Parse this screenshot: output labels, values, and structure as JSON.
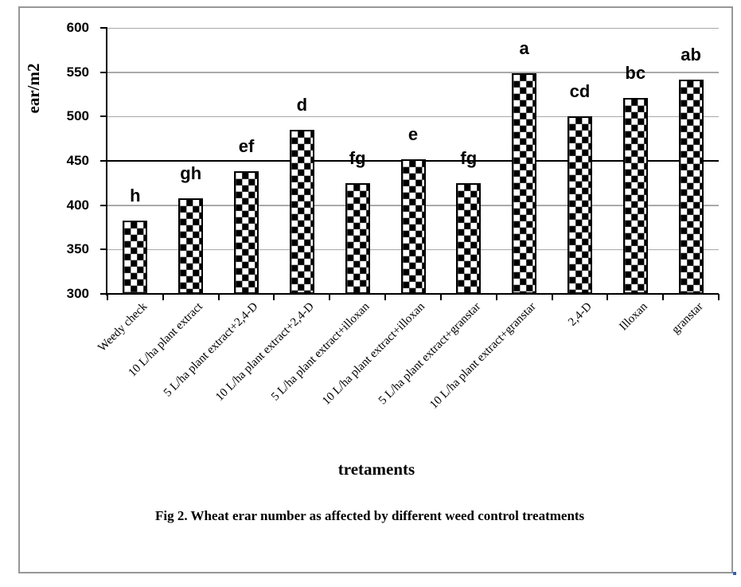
{
  "figure": {
    "caption": "Fig 2. Wheat erar number as affected by different weed control treatments",
    "corner_mark": "."
  },
  "chart_data": {
    "type": "bar",
    "title": "",
    "xlabel": "tretaments",
    "ylabel": "ear/m2",
    "ylim": [
      300,
      600
    ],
    "yticks": [
      300,
      350,
      400,
      450,
      500,
      550,
      600
    ],
    "grid": "horizontal gridlines every 50 units; 450 line drawn darker/black",
    "legend_position": "none",
    "bar_style": "black-and-white checkerboard pattern fill with black outline",
    "categories": [
      "Weedy check",
      "10 L/ha plant extract",
      "5 L/ha plant extract+2,4-D",
      "10 L/ha plant extract+2,4-D",
      "5 L/ha plant extract+illoxan",
      "10 L/ha plant extract+illoxan",
      "5 L/ha plant extract+granstar",
      "10 L/ha plant extract+granstar",
      "2,4-D",
      "Illoxan",
      "granstar"
    ],
    "values": [
      383,
      408,
      438,
      485,
      425,
      452,
      425,
      549,
      500,
      521,
      542
    ],
    "significance_letters": [
      "h",
      "gh",
      "ef",
      "d",
      "fg",
      "e",
      "fg",
      "a",
      "cd",
      "bc",
      "ab"
    ]
  },
  "colors": {
    "background": "#ffffff",
    "text": "#000000",
    "gridline": "#a9a9a9",
    "gridline_dark": "#000000",
    "axis": "#000000",
    "page_border": "#979797",
    "corner_dot": "#3a5fa8"
  }
}
